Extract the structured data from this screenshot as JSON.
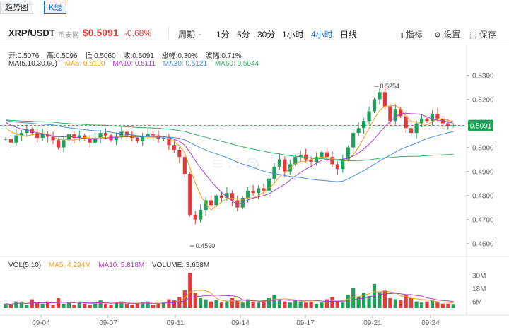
{
  "tabs": [
    {
      "label": "趋势图",
      "active": false
    },
    {
      "label": "K线",
      "active": true
    }
  ],
  "header": {
    "symbol": "XRP/USDT",
    "source": "币安网",
    "price": "$0.5091",
    "change": "-0.68%",
    "periods": [
      {
        "label": "周期",
        "active": false
      },
      {
        "label": "1分",
        "active": false
      },
      {
        "label": "5分",
        "active": false
      },
      {
        "label": "30分",
        "active": false
      },
      {
        "label": "1小时",
        "active": false
      },
      {
        "label": "4小时",
        "active": true
      },
      {
        "label": "日线",
        "active": false
      }
    ],
    "tools": {
      "indicator": "指标",
      "settings": "设置",
      "save": "保存"
    }
  },
  "ohlc": {
    "open": "开:0.5076",
    "high": "高:0.5096",
    "low": "低:0.5060",
    "close": "收:0.5091",
    "change": "涨幅:0.30%",
    "amplitude": "波幅:0.71%"
  },
  "ma": {
    "label": "MA(5,10,30,60)",
    "ma5": "MA5: 0.5100",
    "ma10": "MA10: 0.5111",
    "ma30": "MA30: 0.5121",
    "ma60": "MA60: 0.5044"
  },
  "vol": {
    "label": "VOL(5,10)",
    "ma5": "MA5: 4.294M",
    "ma10": "MA10: 5.818M",
    "volume": "VOLUME: 3.658M"
  },
  "chart_data": {
    "type": "candlestick",
    "price_axis": {
      "ticks": [
        "0.5300",
        "0.5200",
        "0.5100",
        "0.5000",
        "0.4900",
        "0.4800",
        "0.4700",
        "0.4600"
      ],
      "ylim": [
        0.4555,
        0.5325
      ]
    },
    "volume_axis": {
      "ticks": [
        "30M",
        "18M",
        "6M"
      ],
      "ylim": [
        0,
        36
      ]
    },
    "x_labels": [
      "09-04",
      "09-07",
      "09-11",
      "09-14",
      "09-17",
      "09-21",
      "09-24"
    ],
    "last_price_tag": "0.5091",
    "high_marker": "0.5254",
    "low_marker": "0.4590",
    "colors": {
      "up": "#20a05a",
      "down": "#e03a3a",
      "ma5": "#f0a020",
      "ma10": "#b040c8",
      "ma30": "#4a90e2",
      "ma60": "#36b06a"
    }
  }
}
